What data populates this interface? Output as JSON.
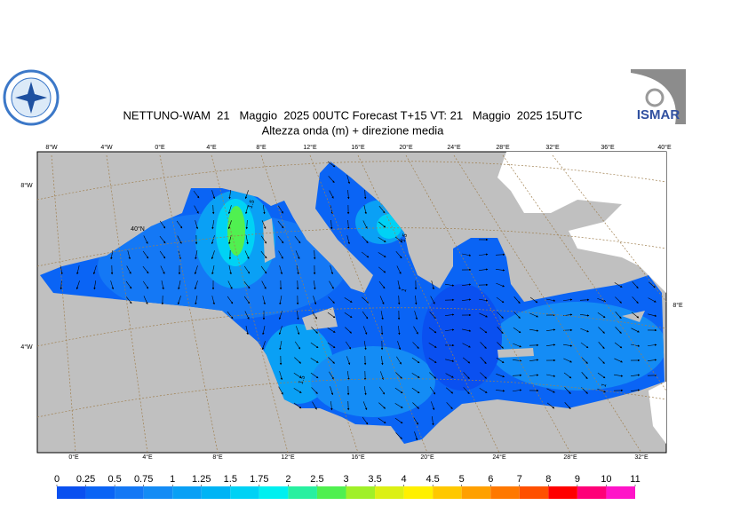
{
  "header": {
    "title": "NETTUNO-WAM  21   Maggio  2025 00UTC Forecast T+15 VT: 21   Maggio  2025 15UTC",
    "subtitle": "Altezza onda (m) + direzione media",
    "logo_text": "ISMAR"
  },
  "map": {
    "top_lon_labels": [
      "8°W",
      "4°W",
      "0°E",
      "4°E",
      "8°E",
      "12°E",
      "16°E",
      "20°E",
      "24°E",
      "28°E",
      "32°E",
      "36°E",
      "40°E"
    ],
    "bottom_lon_labels": [
      "0°E",
      "4°E",
      "8°E",
      "12°E",
      "16°E",
      "20°E",
      "24°E",
      "28°E",
      "32°E"
    ],
    "lat_labels": [
      "8°W",
      "4°W",
      "40°N",
      "8°E"
    ],
    "contour_labels": [
      "1.5",
      "1.5",
      "1",
      "1.5",
      "1"
    ]
  },
  "legend": {
    "levels": [
      0,
      0.25,
      0.5,
      0.75,
      1,
      1.25,
      1.5,
      1.75,
      2,
      2.5,
      3,
      3.5,
      4,
      4.5,
      5,
      6,
      7,
      8,
      9,
      10,
      11
    ],
    "colors": [
      "#0a50f0",
      "#0a64f5",
      "#1478f5",
      "#148cf5",
      "#0aa0f5",
      "#00b4f5",
      "#00d2f5",
      "#00f0f0",
      "#28f0a0",
      "#50f050",
      "#a0f028",
      "#dcf014",
      "#fff000",
      "#ffc800",
      "#ffa000",
      "#ff7800",
      "#ff5000",
      "#ff0000",
      "#ff0078",
      "#ff14c8"
    ]
  }
}
